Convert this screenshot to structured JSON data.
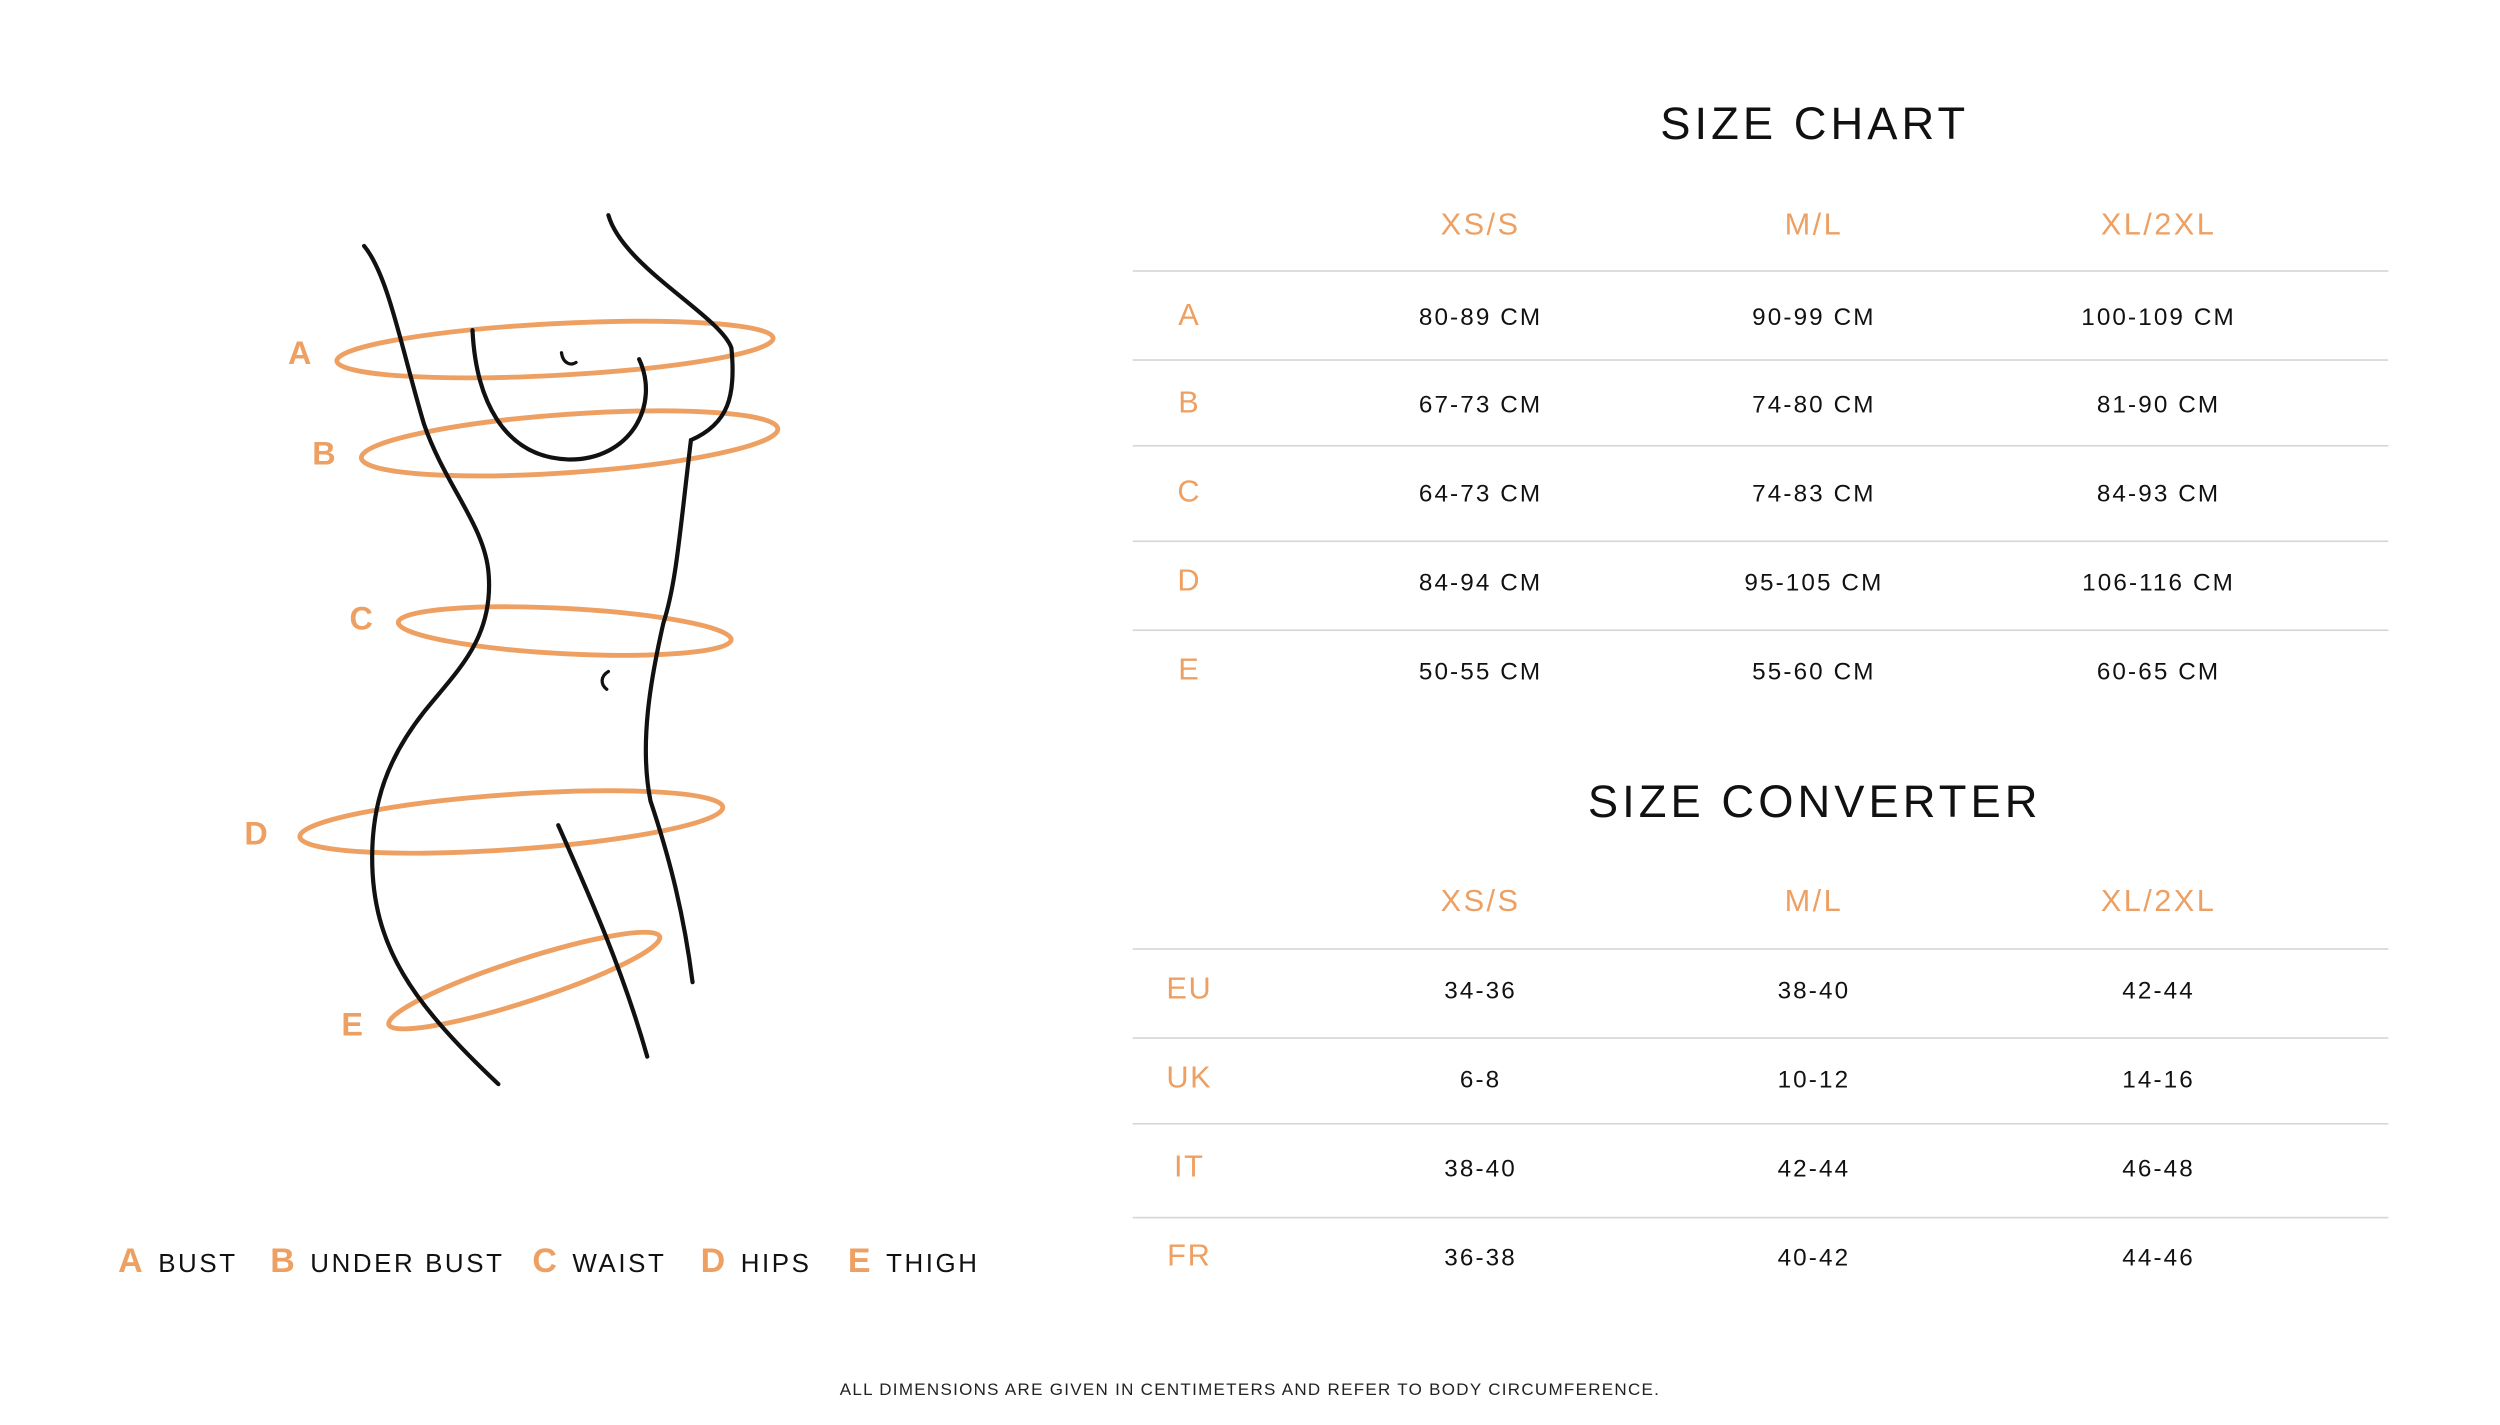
{
  "colors": {
    "accent": "#eda062",
    "text": "#111111",
    "rule": "#d6d6d6"
  },
  "figure": {
    "markers": [
      "A",
      "B",
      "C",
      "D",
      "E"
    ]
  },
  "legend": [
    {
      "letter": "A",
      "label": "BUST"
    },
    {
      "letter": "B",
      "label": "UNDER BUST"
    },
    {
      "letter": "C",
      "label": "WAIST"
    },
    {
      "letter": "D",
      "label": "HIPS"
    },
    {
      "letter": "E",
      "label": "THIGH"
    }
  ],
  "size_chart": {
    "title": "SIZE CHART",
    "columns": [
      "XS/S",
      "M/L",
      "XL/2XL"
    ],
    "rows": [
      {
        "label": "A",
        "values": [
          "80-89 CM",
          "90-99 CM",
          "100-109 CM"
        ]
      },
      {
        "label": "B",
        "values": [
          "67-73 CM",
          "74-80 CM",
          "81-90 CM"
        ]
      },
      {
        "label": "C",
        "values": [
          "64-73 CM",
          "74-83 CM",
          "84-93 CM"
        ]
      },
      {
        "label": "D",
        "values": [
          "84-94 CM",
          "95-105 CM",
          "106-116 CM"
        ]
      },
      {
        "label": "E",
        "values": [
          "50-55 CM",
          "55-60 CM",
          "60-65 CM"
        ]
      }
    ]
  },
  "size_converter": {
    "title": "SIZE CONVERTER",
    "columns": [
      "XS/S",
      "M/L",
      "XL/2XL"
    ],
    "rows": [
      {
        "label": "EU",
        "values": [
          "34-36",
          "38-40",
          "42-44"
        ]
      },
      {
        "label": "UK",
        "values": [
          "6-8",
          "10-12",
          "14-16"
        ]
      },
      {
        "label": "IT",
        "values": [
          "38-40",
          "42-44",
          "46-48"
        ]
      },
      {
        "label": "FR",
        "values": [
          "36-38",
          "40-42",
          "44-46"
        ]
      }
    ]
  },
  "footnote": "ALL DIMENSIONS ARE GIVEN IN CENTIMETERS AND REFER TO BODY CIRCUMFERENCE."
}
